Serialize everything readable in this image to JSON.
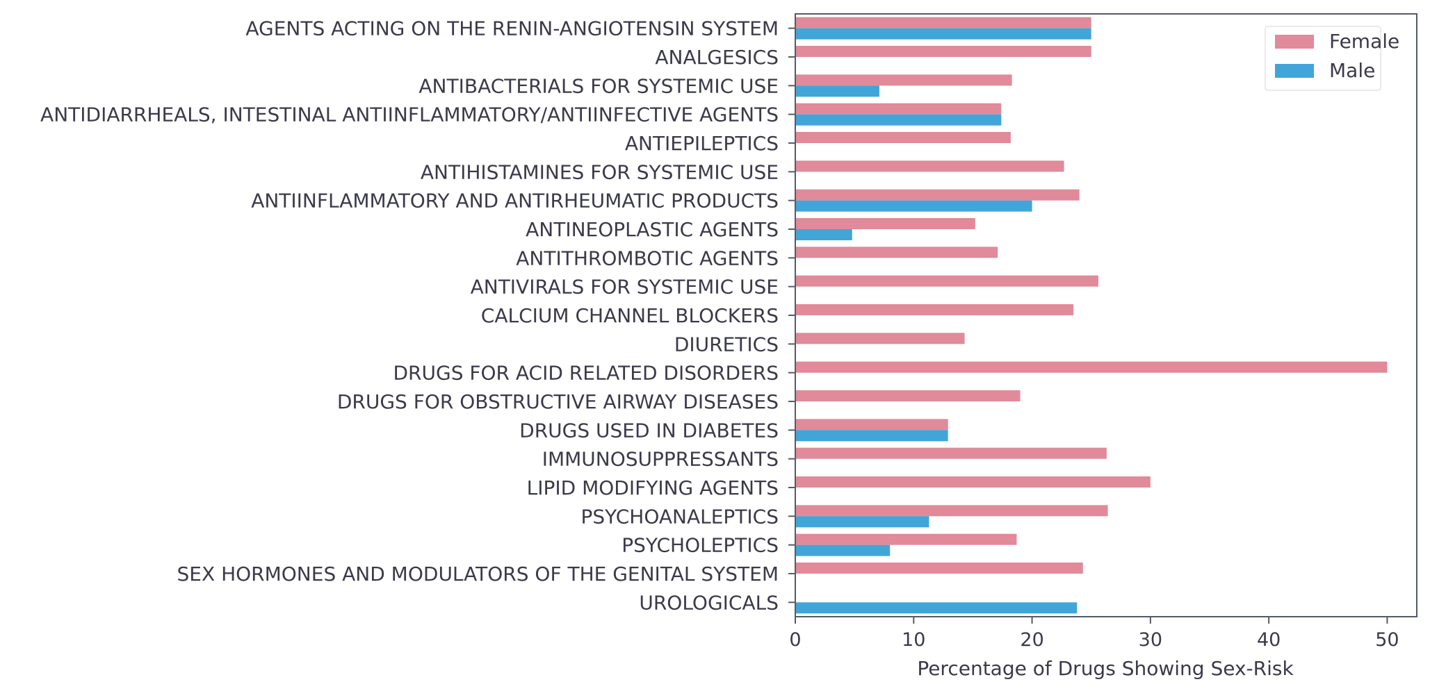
{
  "chart_data": {
    "type": "bar",
    "orientation": "horizontal",
    "title": "",
    "xlabel": "Percentage of Drugs Showing Sex-Risk",
    "ylabel": "",
    "xlim": [
      0,
      52.5
    ],
    "xticks": [
      0,
      10,
      20,
      30,
      40,
      50
    ],
    "grid": false,
    "legend_position": "top-right",
    "categories": [
      "AGENTS ACTING ON THE RENIN-ANGIOTENSIN SYSTEM",
      "ANALGESICS",
      "ANTIBACTERIALS FOR SYSTEMIC USE",
      "ANTIDIARRHEALS, INTESTINAL ANTIINFLAMMATORY/ANTIINFECTIVE AGENTS",
      "ANTIEPILEPTICS",
      "ANTIHISTAMINES FOR SYSTEMIC USE",
      "ANTIINFLAMMATORY AND ANTIRHEUMATIC PRODUCTS",
      "ANTINEOPLASTIC AGENTS",
      "ANTITHROMBOTIC AGENTS",
      "ANTIVIRALS FOR SYSTEMIC USE",
      "CALCIUM CHANNEL BLOCKERS",
      "DIURETICS",
      "DRUGS FOR ACID RELATED DISORDERS",
      "DRUGS FOR OBSTRUCTIVE AIRWAY DISEASES",
      "DRUGS USED IN DIABETES",
      "IMMUNOSUPPRESSANTS",
      "LIPID MODIFYING AGENTS",
      "PSYCHOANALEPTICS",
      "PSYCHOLEPTICS",
      "SEX HORMONES AND MODULATORS OF THE GENITAL SYSTEM",
      "UROLOGICALS"
    ],
    "series": [
      {
        "name": "Female",
        "color": "#e08a9a",
        "values": [
          25.0,
          25.0,
          18.3,
          17.4,
          18.2,
          22.7,
          24.0,
          15.2,
          17.1,
          25.6,
          23.5,
          14.3,
          50.0,
          19.0,
          12.9,
          26.3,
          30.0,
          26.4,
          18.7,
          24.3,
          0
        ]
      },
      {
        "name": "Male",
        "color": "#42a5d8",
        "values": [
          25.0,
          0,
          7.1,
          17.4,
          0,
          0,
          20.0,
          4.8,
          0,
          0,
          0,
          0,
          0,
          0,
          12.9,
          0,
          0,
          11.3,
          8.0,
          0,
          23.8
        ]
      }
    ]
  }
}
